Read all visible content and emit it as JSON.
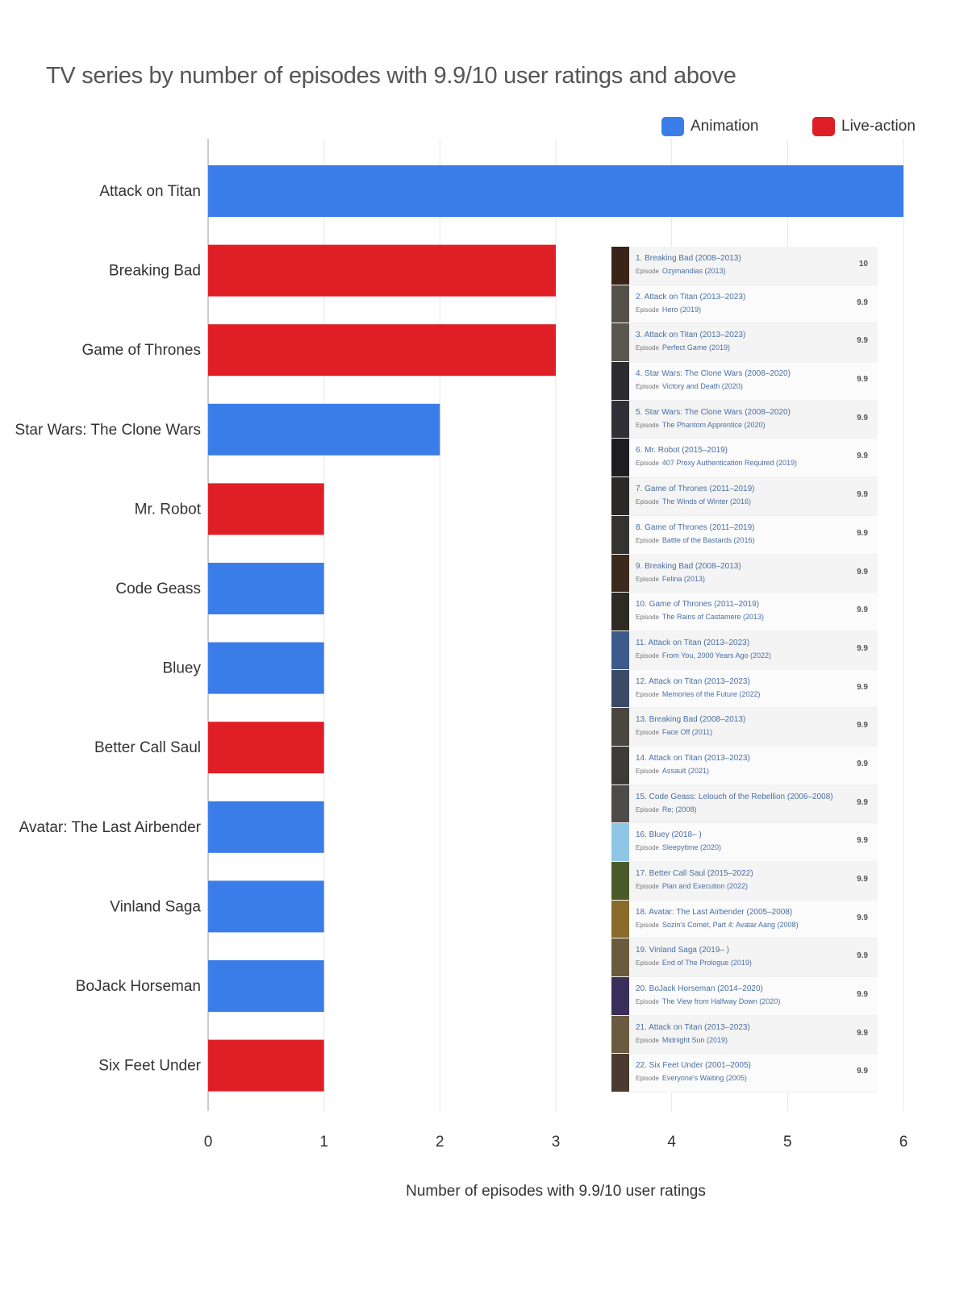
{
  "colors": {
    "animation": "#3b7de8",
    "live_action": "#e01e26",
    "grid": "#e6e6e6",
    "axis": "#cccccc"
  },
  "chart_data": {
    "type": "bar",
    "orientation": "horizontal",
    "title": "TV series by number of episodes with 9.9/10 user ratings and above",
    "xlabel": "Number of episodes with 9.9/10 user ratings",
    "ylabel": "",
    "xlim": [
      0,
      6
    ],
    "x_ticks": [
      "0",
      "1",
      "2",
      "3",
      "4",
      "5",
      "6"
    ],
    "grid": true,
    "legend_position": "top-right",
    "legend": [
      {
        "name": "Animation",
        "color": "#3b7de8"
      },
      {
        "name": "Live-action",
        "color": "#e01e26"
      }
    ],
    "categories": [
      "Attack on Titan",
      "Breaking Bad",
      "Game of Thrones",
      "Star Wars: The Clone Wars",
      "Mr. Robot",
      "Code Geass",
      "Bluey",
      "Better Call Saul",
      "Avatar: The Last Airbender",
      "Vinland Saga",
      "BoJack Horseman",
      "Six Feet Under"
    ],
    "values": [
      6,
      3,
      3,
      2,
      1,
      1,
      1,
      1,
      1,
      1,
      1,
      1
    ],
    "groups": [
      "Animation",
      "Live-action",
      "Live-action",
      "Animation",
      "Live-action",
      "Animation",
      "Animation",
      "Live-action",
      "Animation",
      "Animation",
      "Animation",
      "Live-action"
    ]
  },
  "episode_list": {
    "episode_tag": "Episode",
    "items": [
      {
        "title": "1. Breaking Bad (2008–2013)",
        "episode": "Ozymandias (2013)",
        "rating": "10",
        "poster": "#3a2418"
      },
      {
        "title": "2. Attack on Titan (2013–2023)",
        "episode": "Hero (2019)",
        "rating": "9.9",
        "poster": "#55504a"
      },
      {
        "title": "3. Attack on Titan (2013–2023)",
        "episode": "Perfect Game (2019)",
        "rating": "9.9",
        "poster": "#5a5650"
      },
      {
        "title": "4. Star Wars: The Clone Wars (2008–2020)",
        "episode": "Victory and Death (2020)",
        "rating": "9.9",
        "poster": "#2c2c30"
      },
      {
        "title": "5. Star Wars: The Clone Wars (2008–2020)",
        "episode": "The Phantom Apprentice (2020)",
        "rating": "9.9",
        "poster": "#303036"
      },
      {
        "title": "6. Mr. Robot (2015–2019)",
        "episode": "407 Proxy Authentication Required (2019)",
        "rating": "9.9",
        "poster": "#1d1d22"
      },
      {
        "title": "7. Game of Thrones (2011–2019)",
        "episode": "The Winds of Winter (2016)",
        "rating": "9.9",
        "poster": "#2b2a28"
      },
      {
        "title": "8. Game of Thrones (2011–2019)",
        "episode": "Battle of the Bastards (2016)",
        "rating": "9.9",
        "poster": "#34332f"
      },
      {
        "title": "9. Breaking Bad (2008–2013)",
        "episode": "Felina (2013)",
        "rating": "9.9",
        "poster": "#3b2a1c"
      },
      {
        "title": "10. Game of Thrones (2011–2019)",
        "episode": "The Rains of Castamere (2013)",
        "rating": "9.9",
        "poster": "#2e2a24"
      },
      {
        "title": "11. Attack on Titan (2013–2023)",
        "episode": "From You, 2000 Years Ago (2022)",
        "rating": "9.9",
        "poster": "#3c5b8a"
      },
      {
        "title": "12. Attack on Titan (2013–2023)",
        "episode": "Memories of the Future (2022)",
        "rating": "9.9",
        "poster": "#3b4a66"
      },
      {
        "title": "13. Breaking Bad (2008–2013)",
        "episode": "Face Off (2011)",
        "rating": "9.9",
        "poster": "#4a4640"
      },
      {
        "title": "14. Attack on Titan (2013–2023)",
        "episode": "Assault (2021)",
        "rating": "9.9",
        "poster": "#3e3b36"
      },
      {
        "title": "15. Code Geass: Lelouch of the Rebellion (2006–2008)",
        "episode": "Re; (2008)",
        "rating": "9.9",
        "poster": "#4e4c4a"
      },
      {
        "title": "16. Bluey (2018– )",
        "episode": "Sleepytime (2020)",
        "rating": "9.9",
        "poster": "#8fc6e6"
      },
      {
        "title": "17. Better Call Saul (2015–2022)",
        "episode": "Plan and Execution (2022)",
        "rating": "9.9",
        "poster": "#4a5a2a"
      },
      {
        "title": "18. Avatar: The Last Airbender (2005–2008)",
        "episode": "Sozin's Comet, Part 4: Avatar Aang (2008)",
        "rating": "9.9",
        "poster": "#8a6a2a"
      },
      {
        "title": "19. Vinland Saga (2019– )",
        "episode": "End of The Prologue (2019)",
        "rating": "9.9",
        "poster": "#6a5a3e"
      },
      {
        "title": "20. BoJack Horseman (2014–2020)",
        "episode": "The View from Halfway Down (2020)",
        "rating": "9.9",
        "poster": "#3a2e5a"
      },
      {
        "title": "21. Attack on Titan (2013–2023)",
        "episode": "Midnight Sun (2019)",
        "rating": "9.9",
        "poster": "#6a5a40"
      },
      {
        "title": "22. Six Feet Under (2001–2005)",
        "episode": "Everyone's Waiting (2005)",
        "rating": "9.9",
        "poster": "#4a3a30"
      }
    ]
  }
}
